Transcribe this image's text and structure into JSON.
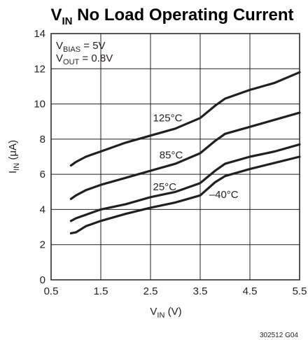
{
  "chart_data": {
    "type": "line",
    "title": {
      "main": "V",
      "sub": "IN",
      "rest": " No Load Operating Current"
    },
    "xlabel": {
      "main": "V",
      "sub": "IN",
      "rest": " (V)"
    },
    "ylabel": {
      "main": "I",
      "sub": "IN",
      "rest": " (μA)"
    },
    "xlim": [
      0.5,
      5.5
    ],
    "ylim": [
      0,
      14
    ],
    "x_ticks": [
      "0.5",
      "1.5",
      "2.5",
      "3.5",
      "4.5",
      "5.5"
    ],
    "y_ticks": [
      "0",
      "2",
      "4",
      "6",
      "8",
      "10",
      "12",
      "14"
    ],
    "grid": true,
    "conditions": [
      {
        "main": "V",
        "sub": "BIAS",
        "rest": " = 5V"
      },
      {
        "main": "V",
        "sub": "OUT",
        "rest": " = 0.8V"
      }
    ],
    "series": [
      {
        "name": "125°C",
        "x": [
          0.9,
          1.0,
          1.2,
          1.5,
          2.0,
          2.5,
          3.0,
          3.5,
          3.8,
          4.0,
          4.5,
          5.0,
          5.5
        ],
        "y": [
          6.5,
          6.7,
          7.0,
          7.3,
          7.8,
          8.2,
          8.6,
          9.2,
          9.9,
          10.3,
          10.8,
          11.2,
          11.8
        ]
      },
      {
        "name": "85°C",
        "x": [
          0.9,
          1.0,
          1.2,
          1.5,
          2.0,
          2.5,
          3.0,
          3.5,
          3.8,
          4.0,
          4.5,
          5.0,
          5.5
        ],
        "y": [
          4.6,
          4.8,
          5.1,
          5.4,
          5.8,
          6.2,
          6.6,
          7.2,
          7.9,
          8.3,
          8.7,
          9.1,
          9.5
        ]
      },
      {
        "name": "25°C",
        "x": [
          0.9,
          1.0,
          1.2,
          1.5,
          2.0,
          2.5,
          3.0,
          3.5,
          3.8,
          4.0,
          4.5,
          5.0,
          5.5
        ],
        "y": [
          3.35,
          3.5,
          3.7,
          4.0,
          4.3,
          4.7,
          5.0,
          5.5,
          6.2,
          6.6,
          7.0,
          7.3,
          7.7
        ]
      },
      {
        "name": "–40°C",
        "x": [
          0.9,
          1.0,
          1.2,
          1.5,
          2.0,
          2.5,
          3.0,
          3.5,
          3.8,
          4.0,
          4.5,
          5.0,
          5.5
        ],
        "y": [
          2.65,
          2.7,
          3.05,
          3.35,
          3.75,
          4.1,
          4.4,
          4.8,
          5.55,
          5.9,
          6.3,
          6.65,
          7.0
        ]
      }
    ],
    "series_label_anchor": [
      {
        "x": 2.55,
        "y": 9.0
      },
      {
        "x": 2.68,
        "y": 6.9
      },
      {
        "x": 2.55,
        "y": 5.1
      },
      {
        "x": 3.68,
        "y": 4.65
      }
    ]
  },
  "figure_id": "302512 G04",
  "colors": {
    "ink": "#231f20",
    "background": "#ffffff"
  }
}
